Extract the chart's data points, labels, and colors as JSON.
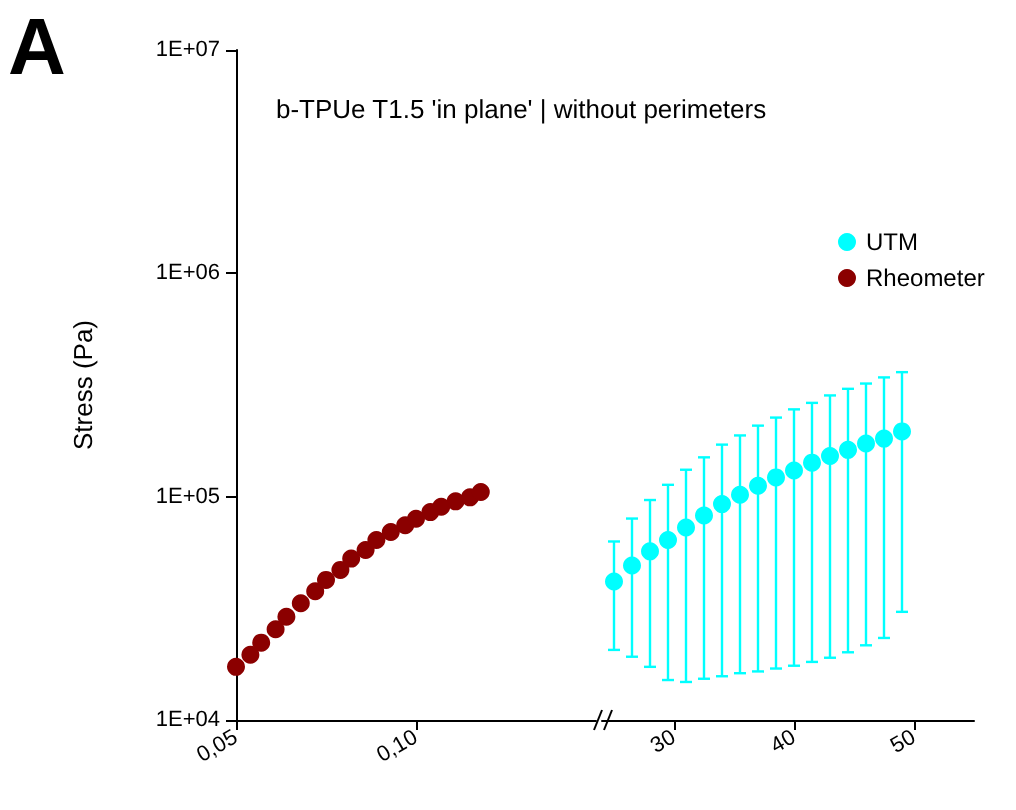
{
  "chart_data": [
    {
      "type": "scatter",
      "title": "b-TPUe T1.5 'in plane' | without perimeters",
      "ylabel": "Stress (Pa)",
      "annotations": [
        "A"
      ],
      "log": "y",
      "legend": "right",
      "marker": "circle",
      "x": [
        0.05,
        0.054,
        0.057,
        0.061,
        0.064,
        0.068,
        0.072,
        0.075,
        0.079,
        0.082,
        0.086,
        0.089,
        0.093,
        0.097,
        0.1,
        0.104,
        0.107,
        0.111,
        0.115,
        0.118
      ],
      "xlim": [
        0.05,
        0.15
      ],
      "xticks": [
        {
          "value": 0.05,
          "label": "0,05"
        },
        {
          "value": 0.1,
          "label": "0,10"
        }
      ],
      "ylim": [
        10000,
        10000000
      ],
      "yticks": [
        {
          "value": 10000,
          "label": "1E+04"
        },
        {
          "value": 100000,
          "label": "1E+05"
        },
        {
          "value": 1000000,
          "label": "1E+06"
        },
        {
          "value": 10000000,
          "label": "1E+07"
        }
      ],
      "series": [
        {
          "name": "Rheometer",
          "color": "#8b0000",
          "values": [
            17300,
            19600,
            22200,
            25500,
            29000,
            33300,
            37700,
            42400,
            47000,
            52800,
            57700,
            64000,
            69500,
            74500,
            79700,
            85300,
            90200,
            95300,
            99300,
            105000
          ]
        }
      ]
    },
    {
      "type": "scatter",
      "log": "y",
      "legend": "right",
      "marker": "circle",
      "tick_labels": "x",
      "x": [
        25,
        26.5,
        28,
        29.5,
        31,
        32.5,
        34,
        35.5,
        37,
        38.5,
        40,
        41.5,
        43,
        44.5,
        46,
        47.5,
        49
      ],
      "xlim": [
        24,
        55
      ],
      "xticks": [
        30,
        40,
        50
      ],
      "ylim": [
        10000,
        10000000
      ],
      "series": [
        {
          "name": "UTM",
          "color": "#00ffff",
          "values": [
            41700,
            49200,
            56900,
            64000,
            72800,
            82400,
            92600,
            102000,
            112000,
            122000,
            131000,
            142000,
            152000,
            162000,
            173000,
            182000,
            196000
          ],
          "errors": [
            [
              20600,
              63000
            ],
            [
              19200,
              79800
            ],
            [
              17300,
              96600
            ],
            [
              15100,
              113000
            ],
            [
              14800,
              132000
            ],
            [
              15300,
              150000
            ],
            [
              15700,
              171000
            ],
            [
              16200,
              188000
            ],
            [
              16500,
              208000
            ],
            [
              17000,
              226000
            ],
            [
              17500,
              246000
            ],
            [
              18200,
              263000
            ],
            [
              19000,
              284000
            ],
            [
              20100,
              304000
            ],
            [
              21600,
              321000
            ],
            [
              23300,
              342000
            ],
            [
              30500,
              361000
            ]
          ]
        }
      ]
    }
  ]
}
